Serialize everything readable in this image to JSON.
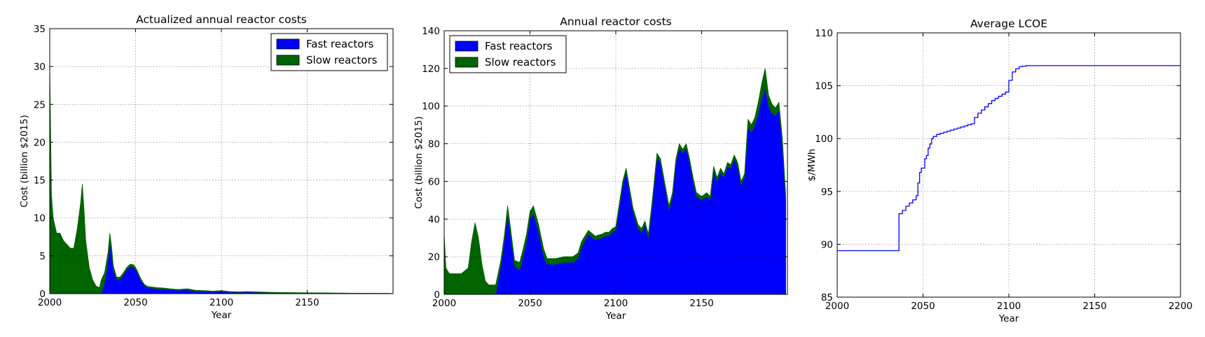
{
  "chart_data": [
    {
      "type": "area",
      "stacked": true,
      "title": "Actualized annual reactor costs",
      "xlabel": "Year",
      "ylabel": "Cost (billion $2015)",
      "xlim": [
        2000,
        2200
      ],
      "ylim": [
        0,
        35
      ],
      "xticks": [
        "2000",
        "2050",
        "2100",
        "2150"
      ],
      "yticks": [
        "0",
        "5",
        "10",
        "15",
        "20",
        "25",
        "30",
        "35"
      ],
      "grid": true,
      "legend_position": "top-right",
      "x": [
        2000,
        2001,
        2002,
        2004,
        2006,
        2008,
        2010,
        2012,
        2014,
        2016,
        2018,
        2019,
        2020,
        2021,
        2023,
        2025,
        2027,
        2029,
        2030,
        2032,
        2034,
        2035,
        2036,
        2037,
        2039,
        2041,
        2043,
        2045,
        2047,
        2049,
        2051,
        2053,
        2055,
        2057,
        2059,
        2062,
        2066,
        2070,
        2075,
        2080,
        2085,
        2090,
        2095,
        2100,
        2105,
        2110,
        2115,
        2120,
        2125,
        2130,
        2140,
        2150,
        2160,
        2170,
        2180,
        2190,
        2199
      ],
      "series": [
        {
          "name": "Fast reactors",
          "color": "#0000ff",
          "values": [
            0,
            0,
            0,
            0,
            0,
            0,
            0,
            0,
            0,
            0,
            0,
            0,
            0,
            0,
            0,
            0,
            0,
            0,
            0,
            1.5,
            4.5,
            6.8,
            5.5,
            3.2,
            1.8,
            1.9,
            2.5,
            3.2,
            3.6,
            3.5,
            2.8,
            1.8,
            1.1,
            0.8,
            0.75,
            0.65,
            0.6,
            0.5,
            0.45,
            0.5,
            0.35,
            0.3,
            0.25,
            0.3,
            0.2,
            0.18,
            0.22,
            0.18,
            0.15,
            0.12,
            0.1,
            0.08,
            0.07,
            0.05,
            0.04,
            0.03,
            0.02
          ]
        },
        {
          "name": "Slow reactors",
          "color": "#006400",
          "values": [
            30,
            13,
            10,
            8,
            8,
            7,
            6.5,
            6,
            6,
            8.5,
            12,
            14.5,
            11,
            7,
            3.5,
            1.8,
            1,
            0.8,
            1.8,
            1.3,
            1,
            1.2,
            0.8,
            0.5,
            0.35,
            0.3,
            0.3,
            0.3,
            0.3,
            0.3,
            0.25,
            0.2,
            0.15,
            0.15,
            0.15,
            0.15,
            0.15,
            0.15,
            0.1,
            0.15,
            0.1,
            0.1,
            0.08,
            0.1,
            0.08,
            0.06,
            0.06,
            0.06,
            0.05,
            0.05,
            0.04,
            0.03,
            0.03,
            0.02,
            0.02,
            0.02,
            0.02
          ]
        }
      ],
      "legend_box": {
        "items": [
          {
            "label": "Fast reactors",
            "color": "#0000ff"
          },
          {
            "label": "Slow reactors",
            "color": "#006400"
          }
        ]
      }
    },
    {
      "type": "area",
      "stacked": true,
      "title": "Annual reactor costs",
      "xlabel": "Year",
      "ylabel": "Cost (billion $2015)",
      "xlim": [
        2000,
        2200
      ],
      "ylim": [
        0,
        140
      ],
      "xticks": [
        "2000",
        "2050",
        "2100",
        "2150"
      ],
      "yticks": [
        "0",
        "20",
        "40",
        "60",
        "80",
        "100",
        "120",
        "140"
      ],
      "grid": true,
      "legend_position": "top-left",
      "x": [
        2000,
        2001,
        2003,
        2006,
        2010,
        2014,
        2016,
        2018,
        2020,
        2022,
        2024,
        2026,
        2028,
        2030,
        2033,
        2035,
        2037,
        2039,
        2041,
        2044,
        2046,
        2048,
        2050,
        2052,
        2055,
        2058,
        2060,
        2065,
        2070,
        2075,
        2078,
        2080,
        2084,
        2088,
        2092,
        2094,
        2096,
        2098,
        2100,
        2102,
        2104,
        2106,
        2110,
        2113,
        2115,
        2117,
        2119,
        2121,
        2124,
        2126,
        2129,
        2131,
        2133,
        2135,
        2137,
        2139,
        2141,
        2143,
        2145,
        2147,
        2150,
        2153,
        2155,
        2157,
        2159,
        2161,
        2163,
        2165,
        2167,
        2169,
        2171,
        2173,
        2175,
        2177,
        2179,
        2181,
        2183,
        2185,
        2187,
        2189,
        2191,
        2193,
        2195,
        2197,
        2199
      ],
      "series": [
        {
          "name": "Fast reactors",
          "color": "#0000ff",
          "values": [
            0,
            0,
            0,
            0,
            0,
            0,
            0,
            0,
            0,
            0,
            0,
            0,
            0,
            0,
            15,
            28,
            43,
            30,
            15,
            13,
            20,
            28,
            40,
            43,
            33,
            20,
            16,
            16,
            17,
            17,
            19,
            25,
            32,
            29,
            30,
            31,
            31,
            33,
            34,
            46,
            58,
            65,
            44,
            35,
            33,
            37,
            30,
            46,
            73,
            70,
            55,
            45,
            52,
            70,
            78,
            75,
            78,
            70,
            60,
            52,
            50,
            52,
            50,
            66,
            60,
            65,
            62,
            68,
            67,
            72,
            68,
            58,
            62,
            89,
            86,
            90,
            96,
            104,
            110,
            100,
            96,
            95,
            98,
            80,
            50
          ]
        },
        {
          "name": "Slow reactors",
          "color": "#006400",
          "values": [
            32,
            14,
            11,
            11,
            11,
            14,
            28,
            38,
            30,
            16,
            7,
            5,
            5,
            5,
            3,
            3,
            4,
            3,
            3,
            4,
            4,
            4,
            4,
            4,
            4,
            4,
            3,
            3,
            3,
            3,
            3,
            3,
            2,
            2,
            2,
            2,
            2,
            2,
            2,
            2,
            2,
            2,
            2,
            2,
            2,
            2,
            2,
            2,
            2,
            2,
            2,
            2,
            2,
            2,
            2,
            2,
            2,
            2,
            2,
            2,
            2,
            2,
            2,
            2,
            2,
            2,
            2,
            2,
            2,
            2,
            2,
            2,
            2,
            4,
            4,
            4,
            6,
            8,
            10,
            6,
            5,
            4,
            4,
            3,
            3
          ]
        }
      ],
      "legend_box": {
        "items": [
          {
            "label": "Fast reactors",
            "color": "#0000ff"
          },
          {
            "label": "Slow reactors",
            "color": "#006400"
          }
        ]
      }
    },
    {
      "type": "line",
      "step": true,
      "title": "Average LCOE",
      "xlabel": "Year",
      "ylabel": "$/MWh",
      "xlim": [
        2000,
        2200
      ],
      "ylim": [
        85,
        110
      ],
      "xticks": [
        "2000",
        "2050",
        "2100",
        "2150",
        "2200"
      ],
      "yticks": [
        "85",
        "90",
        "95",
        "100",
        "105",
        "110"
      ],
      "grid": true,
      "series": [
        {
          "name": "",
          "color": "#0000ff",
          "x": [
            2000,
            2036,
            2038,
            2040,
            2042,
            2044,
            2046,
            2047,
            2048,
            2049,
            2051,
            2052,
            2053,
            2054,
            2055,
            2056,
            2058,
            2060,
            2062,
            2064,
            2066,
            2068,
            2070,
            2072,
            2074,
            2076,
            2078,
            2080,
            2082,
            2084,
            2086,
            2088,
            2090,
            2092,
            2094,
            2096,
            2098,
            2100,
            2102,
            2104,
            2106,
            2108,
            2110,
            2115,
            2200
          ],
          "values": [
            89.4,
            92.9,
            93.2,
            93.6,
            93.9,
            94.2,
            94.6,
            95.8,
            96.8,
            97.2,
            98.1,
            98.4,
            99.1,
            99.5,
            100.0,
            100.2,
            100.4,
            100.5,
            100.6,
            100.7,
            100.8,
            100.9,
            101.0,
            101.1,
            101.2,
            101.3,
            101.4,
            102.0,
            102.4,
            102.7,
            103.0,
            103.3,
            103.6,
            103.8,
            104.0,
            104.2,
            104.4,
            105.5,
            106.3,
            106.6,
            106.8,
            106.85,
            106.9,
            106.9,
            106.9
          ]
        }
      ]
    }
  ]
}
